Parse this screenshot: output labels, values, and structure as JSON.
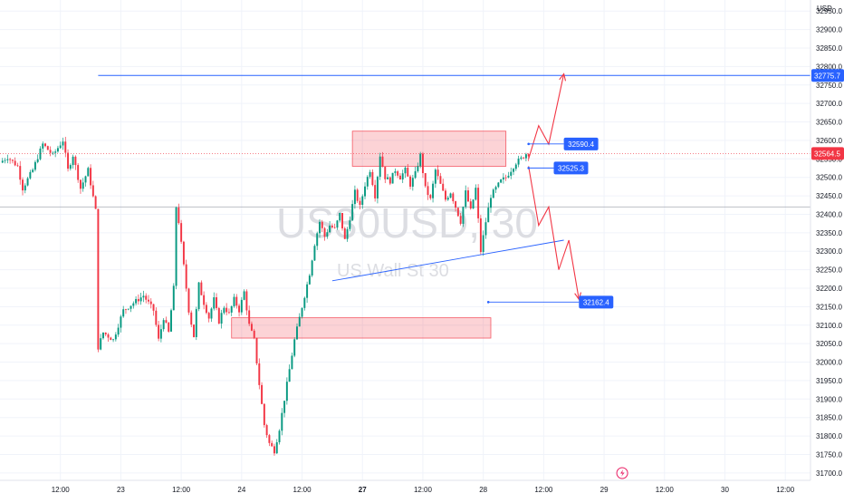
{
  "chart_data": {
    "type": "candlestick",
    "watermark": {
      "symbol": "US30USD, 30",
      "description": "US Wall St 30"
    },
    "currency": "USD",
    "ylim": [
      31680,
      32980
    ],
    "y_ticks": [
      32950.0,
      32900.0,
      32850.0,
      32800.0,
      32750.0,
      32700.0,
      32650.0,
      32600.0,
      32550.0,
      32500.0,
      32450.0,
      32400.0,
      32350.0,
      32300.0,
      32250.0,
      32200.0,
      32150.0,
      32100.0,
      32050.0,
      32000.0,
      31950.0,
      31900.0,
      31850.0,
      31800.0,
      31750.0,
      31700.0
    ],
    "x_ticks": [
      {
        "label": "12:00",
        "t": -12,
        "bold": false
      },
      {
        "label": "23",
        "t": 0,
        "bold": false
      },
      {
        "label": "12:00",
        "t": 12,
        "bold": false
      },
      {
        "label": "24",
        "t": 24,
        "bold": false
      },
      {
        "label": "12:00",
        "t": 36,
        "bold": false
      },
      {
        "label": "27",
        "t": 48,
        "bold": true
      },
      {
        "label": "12:00",
        "t": 60,
        "bold": false
      },
      {
        "label": "28",
        "t": 72,
        "bold": false
      },
      {
        "label": "12:00",
        "t": 84,
        "bold": false
      },
      {
        "label": "29",
        "t": 96,
        "bold": false
      },
      {
        "label": "12:00",
        "t": 108,
        "bold": false
      },
      {
        "label": "30",
        "t": 120,
        "bold": false
      },
      {
        "label": "12:00",
        "t": 132,
        "bold": false
      }
    ],
    "x_domain_hours": [
      -24,
      137
    ],
    "price_path": [
      [
        -23.5,
        32540
      ],
      [
        -22,
        32555
      ],
      [
        -20,
        32530
      ],
      [
        -19,
        32470
      ],
      [
        -17,
        32520
      ],
      [
        -15,
        32590
      ],
      [
        -13,
        32560
      ],
      [
        -11,
        32600
      ],
      [
        -10,
        32520
      ],
      [
        -9,
        32560
      ],
      [
        -7.5,
        32470
      ],
      [
        -6,
        32520
      ],
      [
        -4.5,
        32410
      ],
      [
        -4,
        32040
      ],
      [
        -3,
        32080
      ],
      [
        -1,
        32060
      ],
      [
        1,
        32140
      ],
      [
        3,
        32160
      ],
      [
        5,
        32180
      ],
      [
        7,
        32140
      ],
      [
        8,
        32060
      ],
      [
        9,
        32120
      ],
      [
        10,
        32080
      ],
      [
        11,
        32200
      ],
      [
        11.5,
        32420
      ],
      [
        12,
        32380
      ],
      [
        13,
        32260
      ],
      [
        14,
        32140
      ],
      [
        15,
        32070
      ],
      [
        16,
        32210
      ],
      [
        17,
        32160
      ],
      [
        18,
        32120
      ],
      [
        19,
        32170
      ],
      [
        20,
        32110
      ],
      [
        21,
        32150
      ],
      [
        22,
        32130
      ],
      [
        23,
        32170
      ],
      [
        24,
        32140
      ],
      [
        25,
        32190
      ],
      [
        26,
        32100
      ],
      [
        27,
        32060
      ],
      [
        28,
        31940
      ],
      [
        29,
        31830
      ],
      [
        30,
        31780
      ],
      [
        31,
        31760
      ],
      [
        32,
        31820
      ],
      [
        33,
        31900
      ],
      [
        34,
        31980
      ],
      [
        35,
        32060
      ],
      [
        36,
        32120
      ],
      [
        37,
        32180
      ],
      [
        38,
        32240
      ],
      [
        39,
        32320
      ],
      [
        40,
        32380
      ],
      [
        41,
        32340
      ],
      [
        42,
        32370
      ],
      [
        43,
        32360
      ],
      [
        44,
        32400
      ],
      [
        45,
        32330
      ],
      [
        46,
        32390
      ],
      [
        47,
        32460
      ],
      [
        48,
        32420
      ],
      [
        49,
        32480
      ],
      [
        50,
        32520
      ],
      [
        51,
        32450
      ],
      [
        52,
        32560
      ],
      [
        53,
        32500
      ],
      [
        54,
        32490
      ],
      [
        55,
        32520
      ],
      [
        56,
        32500
      ],
      [
        57,
        32520
      ],
      [
        58,
        32480
      ],
      [
        59,
        32510
      ],
      [
        60,
        32560
      ],
      [
        61,
        32470
      ],
      [
        62,
        32440
      ],
      [
        63,
        32520
      ],
      [
        64,
        32480
      ],
      [
        65,
        32440
      ],
      [
        66,
        32460
      ],
      [
        67,
        32420
      ],
      [
        68,
        32380
      ],
      [
        69,
        32460
      ],
      [
        70,
        32410
      ],
      [
        71,
        32470
      ],
      [
        72,
        32300
      ],
      [
        73,
        32380
      ],
      [
        74,
        32450
      ],
      [
        75,
        32470
      ],
      [
        76,
        32490
      ],
      [
        77,
        32500
      ],
      [
        78,
        32520
      ],
      [
        79,
        32540
      ],
      [
        80,
        32550
      ],
      [
        81,
        32564
      ]
    ],
    "zones": [
      {
        "t0": 46,
        "t1": 76.5,
        "p_top": 32625,
        "p_bottom": 32530,
        "color": "#f23645"
      },
      {
        "t0": 22,
        "t1": 73.5,
        "p_top": 32120,
        "p_bottom": 32065,
        "color": "#f23645"
      }
    ],
    "horizontal_line": {
      "price": 32775.7,
      "t0": -4.5,
      "label": "32775.7",
      "color": "#2962ff"
    },
    "current_price": {
      "price": 32564.5,
      "label": "32564.5",
      "color": "#f23645"
    },
    "trend_line": {
      "t0": 42,
      "p0": 32220,
      "t1": 88,
      "p1": 32330,
      "color": "#2962ff"
    },
    "price_markers": [
      {
        "price": 32590.4,
        "t0": 81,
        "t1": 88,
        "label": "32590.4"
      },
      {
        "price": 32525.3,
        "t0": 81,
        "t1": 86,
        "label": "32525.3"
      },
      {
        "price": 32162.4,
        "t0": 73,
        "t1": 91,
        "label": "32162.4"
      }
    ],
    "projection_up": [
      [
        81,
        32550
      ],
      [
        83,
        32640
      ],
      [
        85,
        32590
      ],
      [
        88,
        32780
      ]
    ],
    "projection_down": [
      [
        81,
        32530
      ],
      [
        83,
        32370
      ],
      [
        85,
        32420
      ],
      [
        87,
        32250
      ],
      [
        89,
        32330
      ],
      [
        91,
        32170
      ]
    ],
    "crosshair_h_price": 32420
  }
}
